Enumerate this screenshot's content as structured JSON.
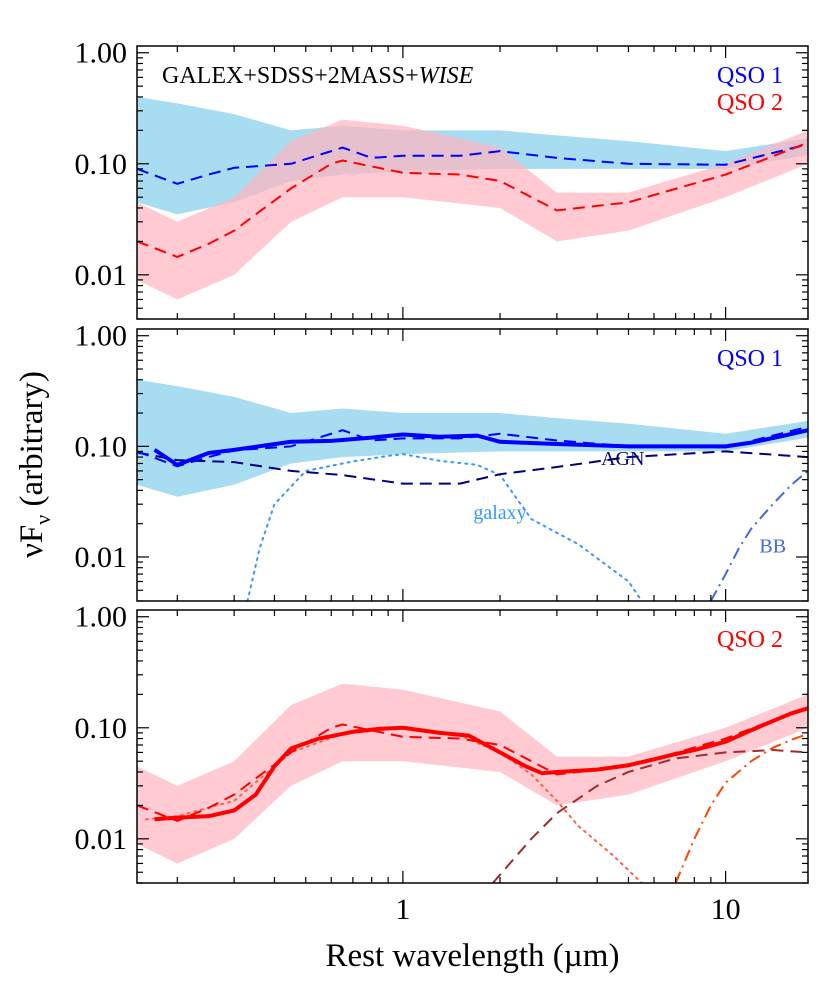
{
  "chart_data": {
    "type": "line",
    "shared_xlabel": "Rest wavelength (µm)",
    "shared_ylabel": "νF",
    "shared_ylabel_sub": "ν",
    "shared_ylabel_suffix": " (arbitrary)",
    "x_scale": "log",
    "y_scale": "log",
    "xlim": [
      0.15,
      18
    ],
    "ylim": [
      0.004,
      1.15
    ],
    "x_ticks": [
      {
        "value": 1,
        "label": "1"
      },
      {
        "value": 10,
        "label": "10"
      }
    ],
    "y_ticks": [
      {
        "value": 0.01,
        "label": "0.01"
      },
      {
        "value": 0.1,
        "label": "0.10"
      },
      {
        "value": 1,
        "label": "1.00"
      }
    ],
    "colors": {
      "qso1": "#0000ff",
      "qso2": "#ff0000",
      "qso1_band": "#87ceeb",
      "qso2_band": "#ffb6c1",
      "agn": "#000080",
      "galaxy": "#3399ff",
      "bb": "#4169e1",
      "qso2_agn": "#a52a2a",
      "qso2_galaxy": "#ff6347",
      "qso2_bb": "#ff4500"
    },
    "panels": [
      {
        "id": "top",
        "title": "GALEX+SDSS+2MASS+",
        "title_italic": "WISE",
        "legend": [
          {
            "label": "QSO 1",
            "color": "#0000ff"
          },
          {
            "label": "QSO 2",
            "color": "#ff0000"
          }
        ],
        "bands": [
          {
            "name": "QSO 1 range",
            "color": "#87ceeb",
            "x": [
              0.15,
              0.2,
              0.3,
              0.45,
              0.65,
              1.0,
              2.0,
              3.0,
              5.0,
              10.0,
              18.0
            ],
            "upper": [
              0.4,
              0.35,
              0.28,
              0.2,
              0.22,
              0.2,
              0.2,
              0.18,
              0.16,
              0.13,
              0.17
            ],
            "lower": [
              0.045,
              0.035,
              0.045,
              0.07,
              0.08,
              0.085,
              0.09,
              0.09,
              0.09,
              0.09,
              0.12
            ]
          },
          {
            "name": "QSO 2 range",
            "color": "#ffb6c1",
            "x": [
              0.15,
              0.2,
              0.3,
              0.45,
              0.65,
              1.0,
              2.0,
              3.0,
              5.0,
              10.0,
              18.0
            ],
            "upper": [
              0.045,
              0.03,
              0.05,
              0.16,
              0.25,
              0.22,
              0.14,
              0.055,
              0.055,
              0.1,
              0.2
            ],
            "lower": [
              0.009,
              0.006,
              0.01,
              0.03,
              0.05,
              0.05,
              0.04,
              0.02,
              0.025,
              0.05,
              0.1
            ]
          }
        ],
        "series": [
          {
            "name": "QSO 1 median",
            "color": "#0000ff",
            "style": "dashed",
            "width": 2,
            "x": [
              0.15,
              0.2,
              0.25,
              0.3,
              0.45,
              0.6,
              0.65,
              0.8,
              1.0,
              1.5,
              2.0,
              3.0,
              5.0,
              10.0,
              18.0
            ],
            "y": [
              0.09,
              0.066,
              0.08,
              0.092,
              0.1,
              0.13,
              0.14,
              0.113,
              0.118,
              0.118,
              0.13,
              0.113,
              0.1,
              0.098,
              0.15
            ]
          },
          {
            "name": "QSO 2 median",
            "color": "#ff0000",
            "style": "dashed",
            "width": 2,
            "x": [
              0.15,
              0.2,
              0.25,
              0.3,
              0.35,
              0.45,
              0.6,
              0.65,
              1.0,
              1.5,
              2.0,
              3.0,
              5.0,
              10.0,
              18.0
            ],
            "y": [
              0.02,
              0.0145,
              0.019,
              0.025,
              0.035,
              0.06,
              0.1,
              0.107,
              0.083,
              0.08,
              0.07,
              0.038,
              0.045,
              0.08,
              0.155
            ]
          }
        ],
        "labels": []
      },
      {
        "id": "middle",
        "title": "",
        "title_italic": "",
        "legend": [
          {
            "label": "QSO 1",
            "color": "#0000ff"
          }
        ],
        "bands": [
          {
            "name": "QSO 1 range",
            "color": "#87ceeb",
            "x": [
              0.15,
              0.2,
              0.3,
              0.45,
              0.65,
              1.0,
              2.0,
              3.0,
              5.0,
              10.0,
              18.0
            ],
            "upper": [
              0.4,
              0.35,
              0.28,
              0.2,
              0.22,
              0.2,
              0.2,
              0.18,
              0.16,
              0.13,
              0.17
            ],
            "lower": [
              0.045,
              0.035,
              0.045,
              0.07,
              0.08,
              0.085,
              0.09,
              0.09,
              0.09,
              0.09,
              0.12
            ]
          }
        ],
        "series": [
          {
            "name": "Galaxy template",
            "color": "#3399ff",
            "style": "dotted",
            "width": 2,
            "x": [
              0.33,
              0.36,
              0.4,
              0.5,
              0.7,
              0.9,
              1.0,
              1.3,
              1.7,
              2.0,
              2.5,
              3.5,
              5.0,
              5.5
            ],
            "y": [
              0.004,
              0.012,
              0.03,
              0.06,
              0.073,
              0.082,
              0.085,
              0.074,
              0.068,
              0.055,
              0.022,
              0.013,
              0.006,
              0.004
            ]
          },
          {
            "name": "AGN template",
            "color": "#000080",
            "style": "dashed",
            "width": 2,
            "x": [
              0.15,
              0.2,
              0.3,
              0.45,
              0.65,
              1.0,
              1.5,
              2.0,
              3.0,
              5.0,
              10.0,
              18.0
            ],
            "y": [
              0.088,
              0.075,
              0.072,
              0.06,
              0.055,
              0.046,
              0.046,
              0.056,
              0.065,
              0.08,
              0.09,
              0.08
            ]
          },
          {
            "name": "Blackbody",
            "color": "#4169e1",
            "style": "dashdot",
            "width": 2,
            "x": [
              9.0,
              10.0,
              11.0,
              12.0,
              14.0,
              16.0,
              18.0
            ],
            "y": [
              0.004,
              0.007,
              0.012,
              0.018,
              0.03,
              0.045,
              0.06
            ]
          },
          {
            "name": "QSO 1 median",
            "color": "#0000ff",
            "style": "dashed",
            "width": 2,
            "x": [
              0.15,
              0.2,
              0.25,
              0.3,
              0.45,
              0.6,
              0.65,
              0.8,
              1.0,
              1.5,
              2.0,
              3.0,
              5.0,
              10.0,
              18.0
            ],
            "y": [
              0.09,
              0.066,
              0.08,
              0.092,
              0.1,
              0.13,
              0.14,
              0.113,
              0.118,
              0.118,
              0.13,
              0.113,
              0.1,
              0.098,
              0.15
            ]
          },
          {
            "name": "QSO 1 model",
            "color": "#0000ff",
            "style": "solid",
            "width": 4,
            "x": [
              0.17,
              0.2,
              0.25,
              0.3,
              0.45,
              0.6,
              0.8,
              1.0,
              1.3,
              1.7,
              2.0,
              3.0,
              5.0,
              8.0,
              10.0,
              12.0,
              15.0,
              18.0
            ],
            "y": [
              0.093,
              0.068,
              0.087,
              0.093,
              0.11,
              0.112,
              0.12,
              0.128,
              0.122,
              0.125,
              0.11,
              0.105,
              0.1,
              0.1,
              0.1,
              0.108,
              0.124,
              0.14
            ]
          }
        ],
        "labels": [
          {
            "text": "AGN",
            "color": "#000080",
            "x": 4.8,
            "y": 0.068
          },
          {
            "text": "galaxy",
            "color": "#3399ff",
            "x": 2.0,
            "y": 0.022
          },
          {
            "text": "BB",
            "color": "#4169e1",
            "x": 14.0,
            "y": 0.011
          }
        ]
      },
      {
        "id": "bottom",
        "title": "",
        "title_italic": "",
        "legend": [
          {
            "label": "QSO 2",
            "color": "#ff0000"
          }
        ],
        "bands": [
          {
            "name": "QSO 2 range",
            "color": "#ffb6c1",
            "x": [
              0.15,
              0.2,
              0.3,
              0.45,
              0.65,
              1.0,
              2.0,
              3.0,
              5.0,
              10.0,
              18.0
            ],
            "upper": [
              0.045,
              0.03,
              0.05,
              0.16,
              0.25,
              0.22,
              0.14,
              0.055,
              0.055,
              0.1,
              0.2
            ],
            "lower": [
              0.009,
              0.006,
              0.01,
              0.03,
              0.05,
              0.05,
              0.04,
              0.02,
              0.025,
              0.05,
              0.1
            ]
          }
        ],
        "series": [
          {
            "name": "Galaxy template",
            "color": "#ff6347",
            "style": "dotted",
            "width": 2,
            "x": [
              0.16,
              0.2,
              0.3,
              0.45,
              0.65,
              1.0,
              1.5,
              2.0,
              2.5,
              3.0,
              3.5,
              4.5,
              5.5
            ],
            "y": [
              0.015,
              0.016,
              0.022,
              0.06,
              0.088,
              0.1,
              0.085,
              0.06,
              0.038,
              0.022,
              0.013,
              0.007,
              0.004
            ]
          },
          {
            "name": "AGN template",
            "color": "#a52a2a",
            "style": "dashed",
            "width": 2,
            "x": [
              1.9,
              2.5,
              3.0,
              4.0,
              5.0,
              7.0,
              10.0,
              14.0,
              18.0
            ],
            "y": [
              0.004,
              0.01,
              0.017,
              0.03,
              0.04,
              0.053,
              0.06,
              0.063,
              0.06
            ]
          },
          {
            "name": "Blackbody",
            "color": "#ff4500",
            "style": "dashdot",
            "width": 2,
            "x": [
              7.0,
              8.0,
              9.0,
              10.0,
              12.0,
              14.0,
              16.0,
              18.0
            ],
            "y": [
              0.004,
              0.01,
              0.02,
              0.032,
              0.05,
              0.066,
              0.078,
              0.088
            ]
          },
          {
            "name": "QSO 2 median",
            "color": "#ff0000",
            "style": "dashed",
            "width": 2,
            "x": [
              0.15,
              0.2,
              0.25,
              0.3,
              0.35,
              0.45,
              0.6,
              0.65,
              1.0,
              1.5,
              2.0,
              3.0,
              5.0,
              10.0,
              18.0
            ],
            "y": [
              0.02,
              0.0145,
              0.019,
              0.025,
              0.035,
              0.06,
              0.1,
              0.107,
              0.083,
              0.08,
              0.07,
              0.038,
              0.045,
              0.08,
              0.155
            ]
          },
          {
            "name": "QSO 2 model",
            "color": "#ff0000",
            "style": "solid",
            "width": 4,
            "x": [
              0.17,
              0.2,
              0.25,
              0.3,
              0.35,
              0.4,
              0.45,
              0.55,
              0.7,
              0.85,
              1.0,
              1.3,
              1.6,
              2.0,
              2.4,
              2.7,
              3.0,
              4.0,
              5.0,
              6.0,
              7.0,
              8.0,
              10.0,
              12.0,
              14.0,
              16.0,
              18.0
            ],
            "y": [
              0.015,
              0.0155,
              0.016,
              0.018,
              0.025,
              0.045,
              0.065,
              0.08,
              0.092,
              0.098,
              0.1,
              0.09,
              0.085,
              0.06,
              0.045,
              0.039,
              0.04,
              0.042,
              0.046,
              0.052,
              0.058,
              0.063,
              0.075,
              0.095,
              0.115,
              0.135,
              0.15
            ]
          }
        ],
        "labels": []
      }
    ]
  }
}
